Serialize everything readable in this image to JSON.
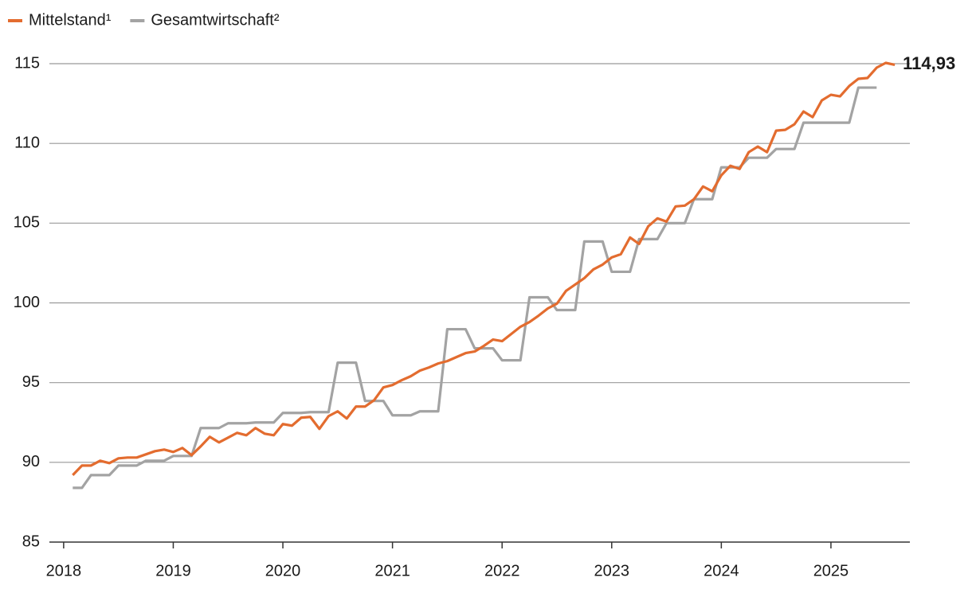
{
  "chart_data": {
    "type": "line",
    "legend": "top-left",
    "grid": true,
    "xlim": [
      2017.87,
      2025.72
    ],
    "xticks": [
      2018,
      2019,
      2020,
      2021,
      2022,
      2023,
      2024,
      2025
    ],
    "ylim": [
      85,
      115
    ],
    "yticks": [
      85,
      90,
      95,
      100,
      105,
      110,
      115
    ],
    "x": [
      2018.083,
      2018.167,
      2018.25,
      2018.333,
      2018.417,
      2018.5,
      2018.583,
      2018.667,
      2018.75,
      2018.833,
      2018.917,
      2019,
      2019.083,
      2019.167,
      2019.25,
      2019.333,
      2019.417,
      2019.5,
      2019.583,
      2019.667,
      2019.75,
      2019.833,
      2019.917,
      2020,
      2020.083,
      2020.167,
      2020.25,
      2020.333,
      2020.417,
      2020.5,
      2020.583,
      2020.667,
      2020.75,
      2020.833,
      2020.917,
      2021,
      2021.083,
      2021.167,
      2021.25,
      2021.333,
      2021.417,
      2021.5,
      2021.583,
      2021.667,
      2021.75,
      2021.833,
      2021.917,
      2022,
      2022.083,
      2022.167,
      2022.25,
      2022.333,
      2022.417,
      2022.5,
      2022.583,
      2022.667,
      2022.75,
      2022.833,
      2022.917,
      2023,
      2023.083,
      2023.167,
      2023.25,
      2023.333,
      2023.417,
      2023.5,
      2023.583,
      2023.667,
      2023.75,
      2023.833,
      2023.917,
      2024,
      2024.083,
      2024.167,
      2024.25,
      2024.333,
      2024.417,
      2024.5,
      2024.583,
      2024.667,
      2024.75,
      2024.833,
      2024.917,
      2025,
      2025.083,
      2025.167,
      2025.25,
      2025.333,
      2025.417,
      2025.5,
      2025.583
    ],
    "series": [
      {
        "name": "Mittelstand¹",
        "color": "#e36c2f",
        "label_color": "#c85a1e",
        "values": [
          89.2,
          89.8,
          89.8,
          90.1,
          89.95,
          90.25,
          90.3,
          90.3,
          90.5,
          90.7,
          90.8,
          90.65,
          90.9,
          90.45,
          91.0,
          91.6,
          91.25,
          91.55,
          91.85,
          91.7,
          92.15,
          91.8,
          91.7,
          92.4,
          92.3,
          92.8,
          92.85,
          92.1,
          92.9,
          93.2,
          92.75,
          93.5,
          93.5,
          93.9,
          94.7,
          94.85,
          95.15,
          95.4,
          95.75,
          95.95,
          96.2,
          96.35,
          96.6,
          96.85,
          96.95,
          97.3,
          97.7,
          97.6,
          98.05,
          98.5,
          98.8,
          99.2,
          99.65,
          99.95,
          100.75,
          101.15,
          101.55,
          102.1,
          102.4,
          102.85,
          103.05,
          104.1,
          103.7,
          104.8,
          105.3,
          105.1,
          106.05,
          106.1,
          106.5,
          107.3,
          107.0,
          108.0,
          108.6,
          108.4,
          109.45,
          109.8,
          109.45,
          110.8,
          110.85,
          111.2,
          112.0,
          111.65,
          112.7,
          113.05,
          112.95,
          113.6,
          114.05,
          114.1,
          114.75,
          115.05,
          114.93
        ],
        "value_labels": [
          null,
          null,
          null,
          null,
          null,
          null,
          null,
          null,
          null,
          null,
          null,
          null,
          null,
          null,
          null,
          null,
          null,
          null,
          null,
          null,
          null,
          null,
          null,
          null,
          null,
          null,
          null,
          null,
          null,
          null,
          null,
          null,
          null,
          null,
          null,
          null,
          null,
          null,
          null,
          null,
          null,
          null,
          null,
          null,
          null,
          null,
          null,
          null,
          null,
          null,
          null,
          null,
          null,
          null,
          null,
          null,
          null,
          null,
          null,
          null,
          null,
          null,
          null,
          null,
          null,
          null,
          null,
          null,
          null,
          null,
          null,
          null,
          null,
          null,
          null,
          null,
          null,
          null,
          null,
          null,
          null,
          null,
          null,
          null,
          null,
          null,
          null,
          null,
          null,
          null,
          "114,93"
        ]
      },
      {
        "name": "Gesamtwirtschaft²",
        "color": "#a3a3a3",
        "values": [
          88.4,
          88.4,
          89.2,
          89.2,
          89.2,
          89.8,
          89.8,
          89.8,
          90.1,
          90.1,
          90.1,
          90.4,
          90.4,
          90.4,
          92.15,
          92.15,
          92.15,
          92.45,
          92.45,
          92.45,
          92.5,
          92.5,
          92.5,
          93.1,
          93.1,
          93.1,
          93.15,
          93.15,
          93.15,
          96.25,
          96.25,
          96.25,
          93.85,
          93.85,
          93.85,
          92.95,
          92.95,
          92.95,
          93.2,
          93.2,
          93.2,
          98.35,
          98.35,
          98.35,
          97.15,
          97.15,
          97.15,
          96.4,
          96.4,
          96.4,
          100.35,
          100.35,
          100.35,
          99.55,
          99.55,
          99.55,
          103.85,
          103.85,
          103.85,
          101.95,
          101.95,
          101.95,
          104.0,
          104.0,
          104.0,
          105.0,
          105.0,
          105.0,
          106.5,
          106.5,
          106.5,
          108.5,
          108.5,
          108.5,
          109.1,
          109.1,
          109.1,
          109.65,
          109.65,
          109.65,
          111.3,
          111.3,
          111.3,
          111.3,
          111.3,
          111.3,
          113.5,
          113.5,
          113.5,
          null,
          null
        ]
      }
    ]
  }
}
